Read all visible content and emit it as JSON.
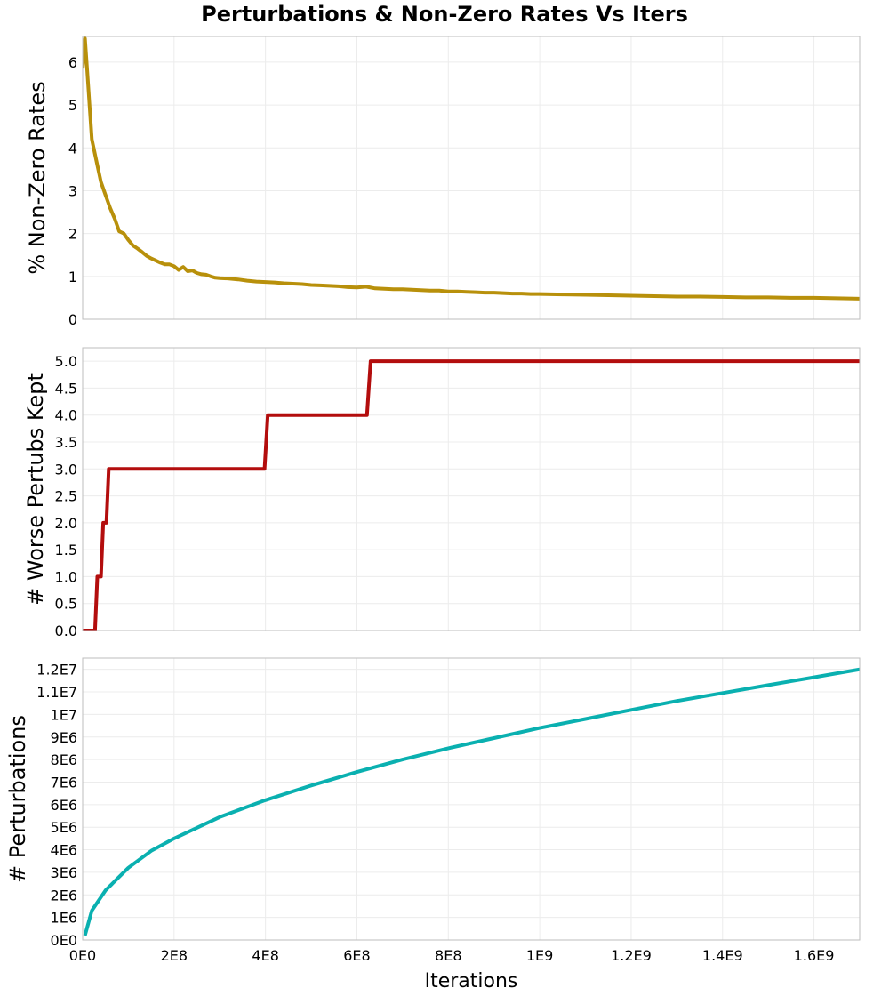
{
  "chart_data": {
    "type": "line",
    "title": "Perturbations & Non-Zero Rates Vs Iters",
    "xlabel": "Iterations",
    "xlim": [
      0,
      1700000000
    ],
    "x_ticks": [
      0,
      200000000,
      400000000,
      600000000,
      800000000,
      1000000000,
      1200000000,
      1400000000,
      1600000000
    ],
    "x_tick_labels": [
      "0E0",
      "2E8",
      "4E8",
      "6E8",
      "8E8",
      "1E9",
      "1.2E9",
      "1.4E9",
      "1.6E9"
    ],
    "grid": true,
    "panels": [
      {
        "ylabel": "% Non-Zero Rates",
        "ylim": [
          0,
          6.6
        ],
        "y_ticks": [
          0,
          1,
          2,
          3,
          4,
          5,
          6
        ],
        "y_tick_labels": [
          "0",
          "1",
          "2",
          "3",
          "4",
          "5",
          "6"
        ],
        "series": [
          {
            "color": "#b8900b",
            "x": [
              0,
              5000000,
              10000000,
              20000000,
              30000000,
              40000000,
              50000000,
              60000000,
              70000000,
              80000000,
              90000000,
              100000000,
              110000000,
              120000000,
              130000000,
              140000000,
              150000000,
              160000000,
              170000000,
              180000000,
              190000000,
              200000000,
              210000000,
              220000000,
              230000000,
              240000000,
              250000000,
              260000000,
              270000000,
              280000000,
              290000000,
              300000000,
              320000000,
              340000000,
              360000000,
              380000000,
              400000000,
              420000000,
              440000000,
              460000000,
              480000000,
              500000000,
              520000000,
              540000000,
              560000000,
              580000000,
              600000000,
              620000000,
              640000000,
              660000000,
              680000000,
              700000000,
              720000000,
              740000000,
              760000000,
              780000000,
              800000000,
              820000000,
              840000000,
              860000000,
              880000000,
              900000000,
              920000000,
              940000000,
              960000000,
              980000000,
              1000000000,
              1050000000,
              1100000000,
              1150000000,
              1200000000,
              1250000000,
              1300000000,
              1350000000,
              1400000000,
              1450000000,
              1500000000,
              1550000000,
              1600000000,
              1650000000,
              1700000000
            ],
            "y": [
              5.85,
              6.55,
              5.8,
              4.2,
              3.7,
              3.2,
              2.9,
              2.6,
              2.35,
              2.05,
              2.0,
              1.85,
              1.72,
              1.65,
              1.57,
              1.48,
              1.42,
              1.37,
              1.32,
              1.28,
              1.28,
              1.24,
              1.15,
              1.22,
              1.12,
              1.14,
              1.08,
              1.05,
              1.04,
              1.0,
              0.97,
              0.96,
              0.95,
              0.93,
              0.9,
              0.88,
              0.87,
              0.86,
              0.84,
              0.83,
              0.82,
              0.8,
              0.79,
              0.78,
              0.77,
              0.75,
              0.74,
              0.76,
              0.72,
              0.71,
              0.7,
              0.7,
              0.69,
              0.68,
              0.67,
              0.67,
              0.65,
              0.65,
              0.64,
              0.63,
              0.62,
              0.62,
              0.61,
              0.6,
              0.6,
              0.59,
              0.59,
              0.58,
              0.57,
              0.56,
              0.55,
              0.54,
              0.53,
              0.53,
              0.52,
              0.51,
              0.51,
              0.5,
              0.5,
              0.49,
              0.48
            ]
          }
        ]
      },
      {
        "ylabel": "# Worse Pertubs Kept",
        "ylim": [
          0,
          5.25
        ],
        "y_ticks": [
          0,
          0.5,
          1,
          1.5,
          2,
          2.5,
          3,
          3.5,
          4,
          4.5,
          5
        ],
        "y_tick_labels": [
          "0.0",
          "0.5",
          "1.0",
          "1.5",
          "2.0",
          "2.5",
          "3.0",
          "3.5",
          "4.0",
          "4.5",
          "5.0"
        ],
        "series": [
          {
            "color": "#b30d0d",
            "x": [
              0,
              27000000,
              32000000,
              40000000,
              45000000,
              52000000,
              57000000,
              64000000,
              398000000,
              405000000,
              622000000,
              630000000,
              1700000000
            ],
            "y": [
              0,
              0,
              1,
              1,
              2,
              2,
              3,
              3,
              3,
              4,
              4,
              5,
              5
            ]
          }
        ]
      },
      {
        "ylabel": "# Perturbations",
        "ylim": [
          0,
          12500000
        ],
        "y_ticks": [
          0,
          1000000,
          2000000,
          3000000,
          4000000,
          5000000,
          6000000,
          7000000,
          8000000,
          9000000,
          10000000,
          11000000,
          12000000
        ],
        "y_tick_labels": [
          "0E0",
          "1E6",
          "2E6",
          "3E6",
          "4E6",
          "5E6",
          "6E6",
          "7E6",
          "8E6",
          "9E6",
          "1E7",
          "1.1E7",
          "1.2E7"
        ],
        "series": [
          {
            "color": "#0ab0b0",
            "x": [
              5000000,
              20000000,
              50000000,
              100000000,
              150000000,
              200000000,
              300000000,
              400000000,
              500000000,
              600000000,
              700000000,
              800000000,
              900000000,
              1000000000,
              1100000000,
              1200000000,
              1300000000,
              1400000000,
              1500000000,
              1600000000,
              1700000000
            ],
            "y": [
              200000,
              1300000,
              2200000,
              3200000,
              3950000,
              4500000,
              5450000,
              6200000,
              6850000,
              7450000,
              8000000,
              8500000,
              8950000,
              9400000,
              9800000,
              10200000,
              10600000,
              10950000,
              11300000,
              11650000,
              12000000
            ]
          }
        ]
      }
    ]
  }
}
